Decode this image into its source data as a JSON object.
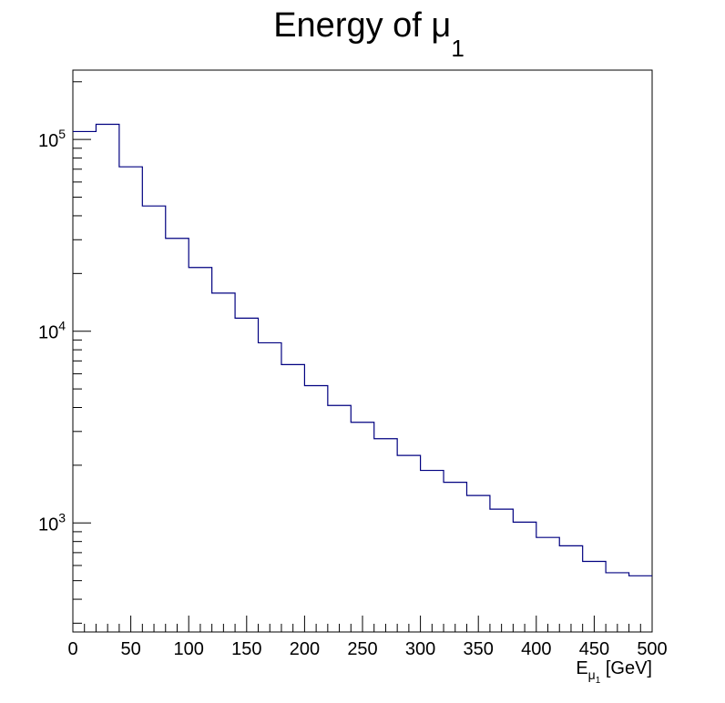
{
  "chart_data": {
    "type": "bar",
    "style": "step-histogram",
    "title_main": "Energy of ",
    "title_symbol": "μ",
    "title_subscript": "1",
    "xlabel_main": "E",
    "xlabel_sub": "μ",
    "xlabel_subsub": "1",
    "xlabel_unit": " [GeV]",
    "ylabel": "",
    "xlim": [
      0,
      500
    ],
    "ylim": [
      270,
      230000
    ],
    "y_scale": "log",
    "x_ticks": [
      "0",
      "50",
      "100",
      "150",
      "200",
      "250",
      "300",
      "350",
      "400",
      "450",
      "500"
    ],
    "y_ticks": [
      {
        "base": "10",
        "exp": "3",
        "value": 1000
      },
      {
        "base": "10",
        "exp": "4",
        "value": 10000
      },
      {
        "base": "10",
        "exp": "5",
        "value": 100000
      }
    ],
    "bin_edges": [
      0,
      20,
      40,
      60,
      80,
      100,
      120,
      140,
      160,
      180,
      200,
      220,
      240,
      260,
      280,
      300,
      320,
      340,
      360,
      380,
      400,
      420,
      440,
      460,
      480,
      500
    ],
    "values": [
      110000,
      120000,
      72000,
      45000,
      30500,
      21500,
      15800,
      11700,
      8700,
      6700,
      5200,
      4100,
      3350,
      2750,
      2250,
      1880,
      1630,
      1390,
      1180,
      1010,
      840,
      760,
      630,
      550,
      530
    ],
    "grid": false,
    "legend": "none",
    "colors": {
      "line": "#000080",
      "frame": "#000000",
      "background": "#ffffff"
    }
  }
}
